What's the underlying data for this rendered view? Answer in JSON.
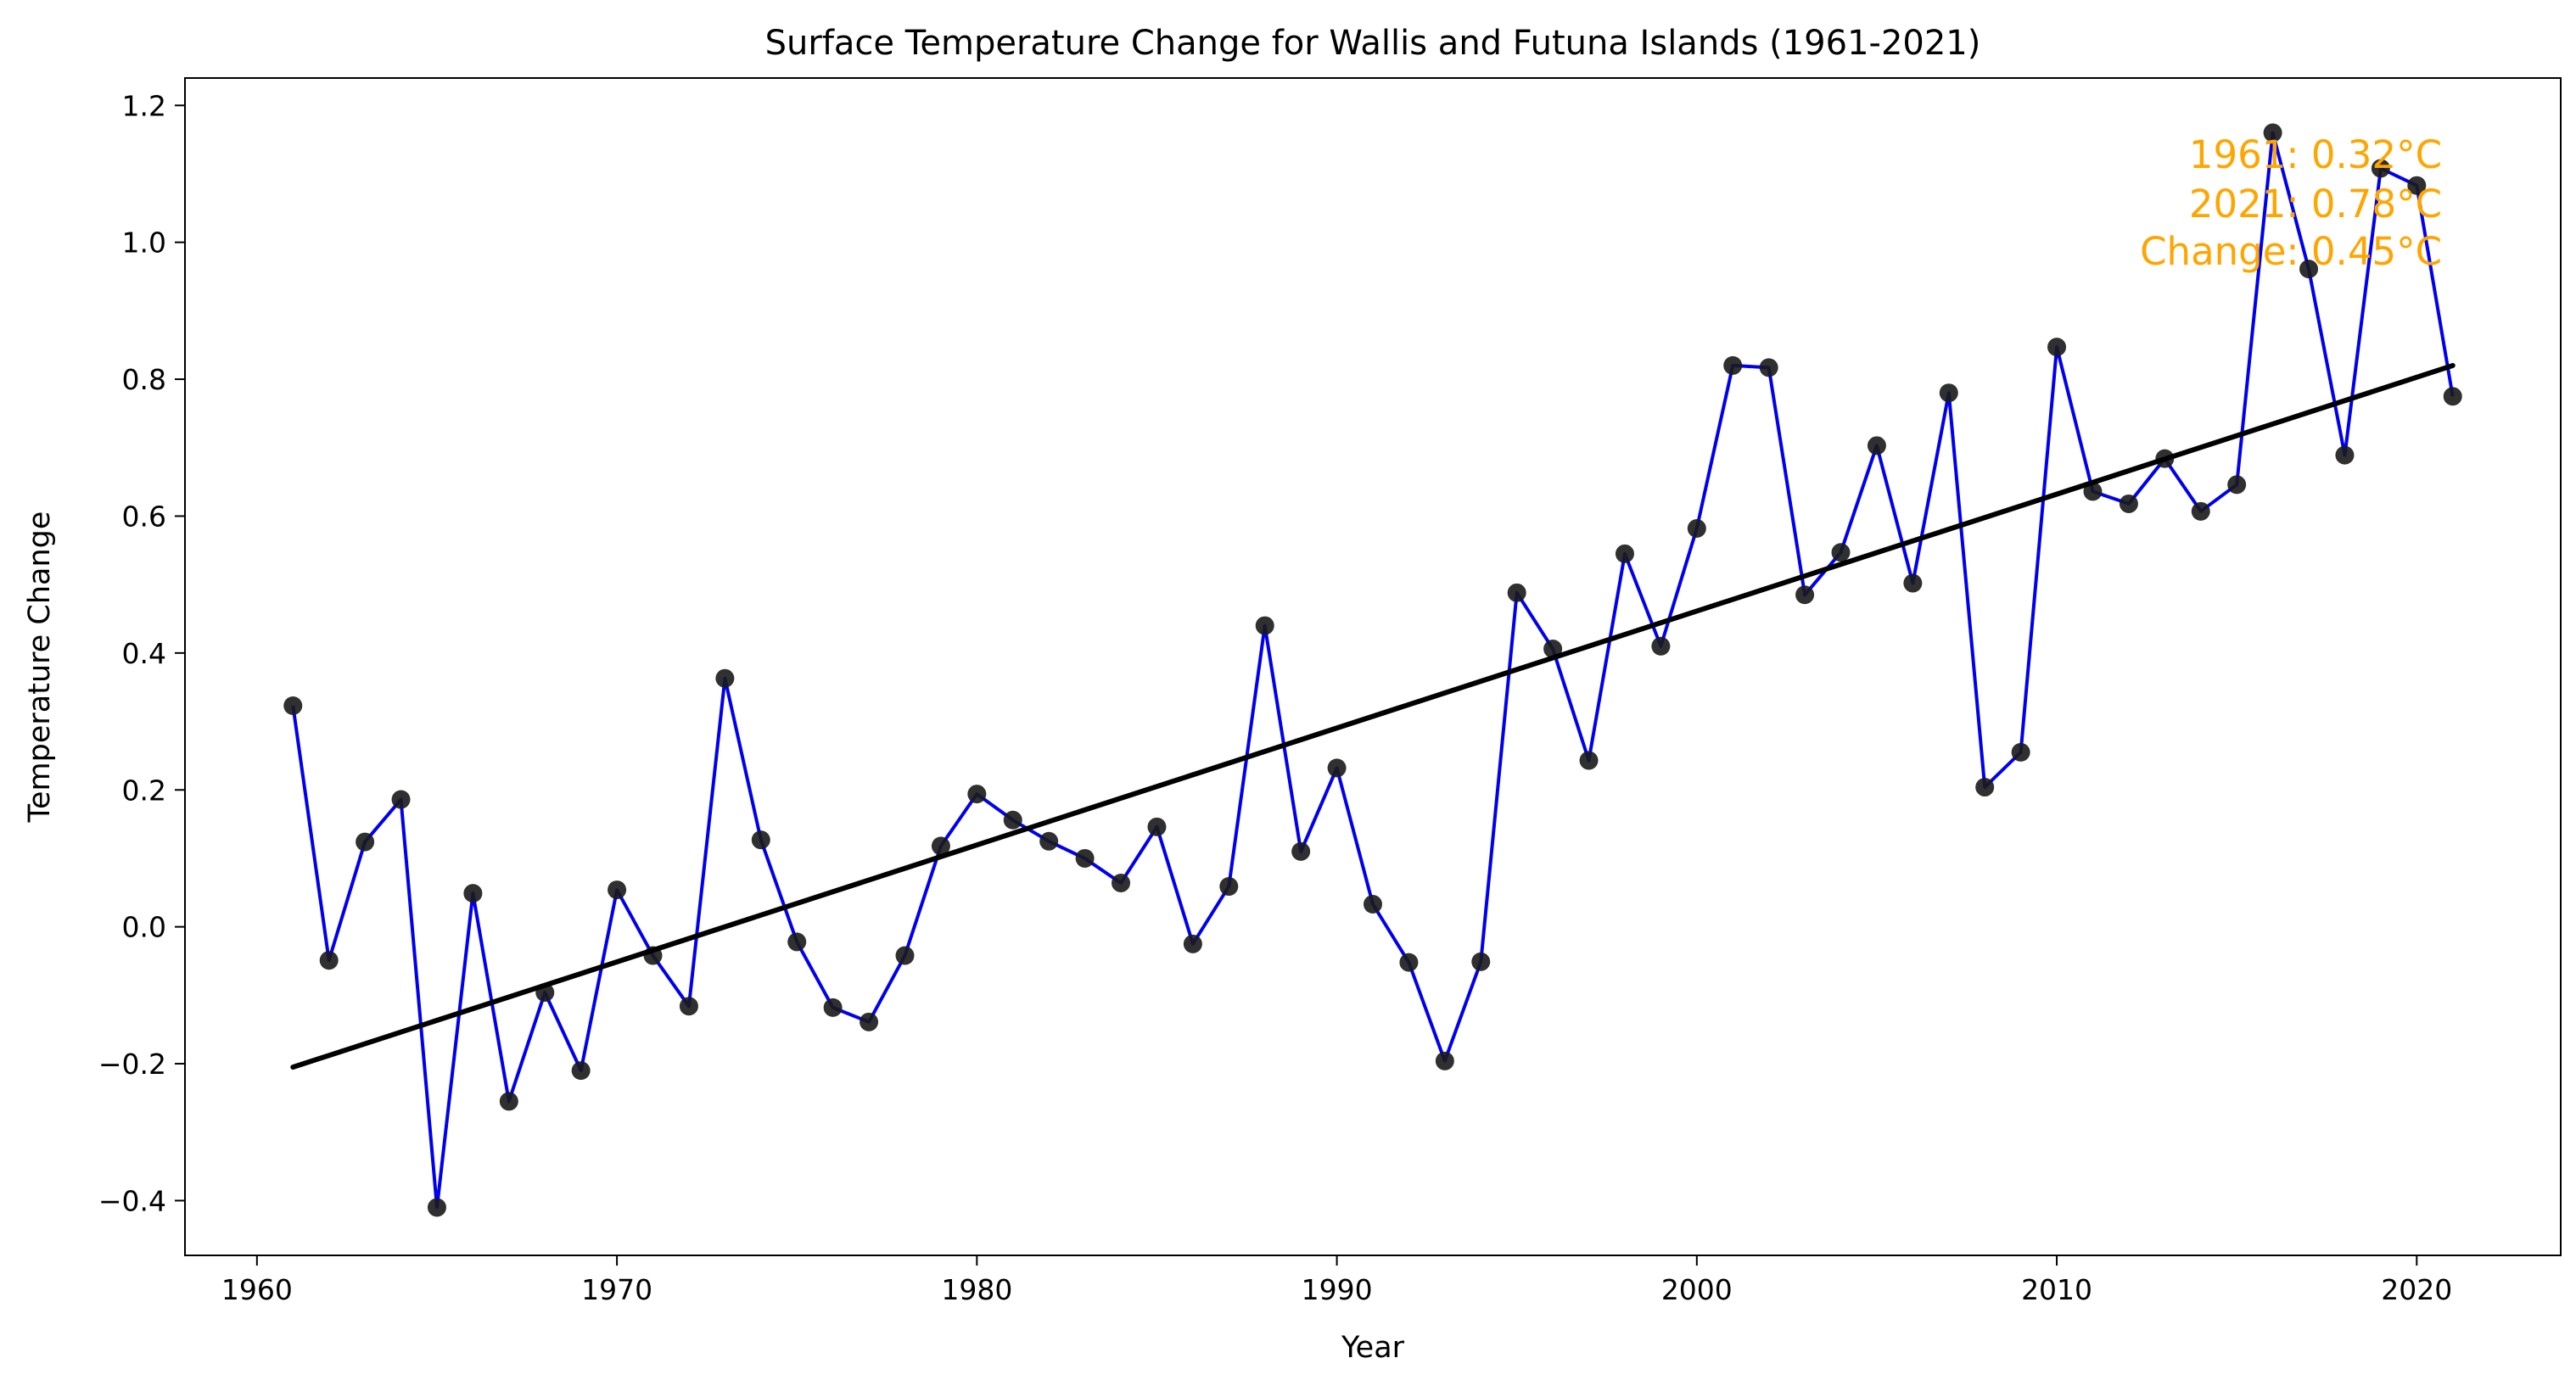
{
  "chart_data": {
    "type": "line",
    "title": "Surface Temperature Change for Wallis and Futuna Islands (1961-2021)",
    "xlabel": "Year",
    "ylabel": "Temperature Change",
    "xlim": [
      1958,
      2024
    ],
    "ylim": [
      -0.48,
      1.24
    ],
    "xticks": [
      1960,
      1970,
      1980,
      1990,
      2000,
      2010,
      2020
    ],
    "yticks": [
      -0.4,
      -0.2,
      0.0,
      0.2,
      0.4,
      0.6,
      0.8,
      1.0,
      1.2
    ],
    "ytick_labels": [
      "−0.4",
      "−0.2",
      "0.0",
      "0.2",
      "0.4",
      "0.6",
      "0.8",
      "1.0",
      "1.2"
    ],
    "grid": false,
    "colors": {
      "line": "#0000ee",
      "points": "#1a1a1a",
      "trend": "#000000",
      "annotation": "#ffa500"
    },
    "x": [
      1961,
      1962,
      1963,
      1964,
      1965,
      1966,
      1967,
      1968,
      1969,
      1970,
      1971,
      1972,
      1973,
      1974,
      1975,
      1976,
      1977,
      1978,
      1979,
      1980,
      1981,
      1982,
      1983,
      1984,
      1985,
      1986,
      1987,
      1988,
      1989,
      1990,
      1991,
      1992,
      1993,
      1994,
      1995,
      1996,
      1997,
      1998,
      1999,
      2000,
      2001,
      2002,
      2003,
      2004,
      2005,
      2006,
      2007,
      2008,
      2009,
      2010,
      2011,
      2012,
      2013,
      2014,
      2015,
      2016,
      2017,
      2018,
      2019,
      2020,
      2021
    ],
    "series": [
      {
        "values": [
          0.323,
          -0.049,
          0.124,
          0.186,
          -0.41,
          0.049,
          -0.255,
          -0.096,
          -0.21,
          0.054,
          -0.042,
          -0.116,
          0.363,
          0.127,
          -0.022,
          -0.118,
          -0.139,
          -0.042,
          0.118,
          0.194,
          0.156,
          0.125,
          0.1,
          0.064,
          0.146,
          -0.025,
          0.059,
          0.44,
          0.11,
          0.232,
          0.033,
          -0.052,
          -0.196,
          -0.051,
          0.488,
          0.406,
          0.243,
          0.545,
          0.41,
          0.582,
          0.82,
          0.817,
          0.485,
          0.547,
          0.703,
          0.502,
          0.78,
          0.204,
          0.255,
          0.847,
          0.636,
          0.618,
          0.684,
          0.607,
          0.646,
          1.16,
          0.961,
          0.689,
          1.108,
          1.083,
          0.775
        ]
      }
    ],
    "trend": {
      "x": [
        1961,
        2021
      ],
      "y": [
        -0.205,
        0.82
      ]
    },
    "annotation": [
      "1961: 0.32°C",
      "2021: 0.78°C",
      "Change: 0.45°C"
    ]
  }
}
